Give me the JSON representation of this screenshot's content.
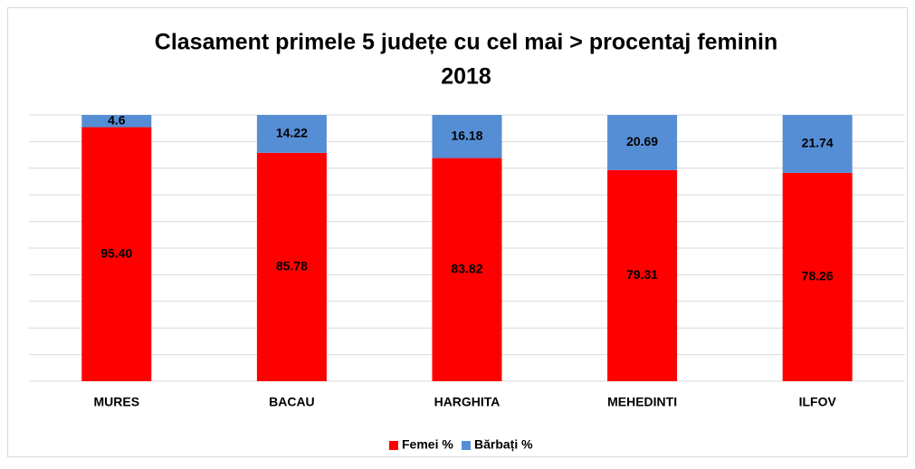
{
  "chart_data": {
    "type": "bar",
    "stacked": true,
    "title": "Clasament primele 5 județe cu cel mai > procentaj feminin",
    "subtitle": "2018",
    "categories": [
      "MURES",
      "BACAU",
      "HARGHITA",
      "MEHEDINTI",
      "ILFOV"
    ],
    "series": [
      {
        "name": "Femei %",
        "color": "#ff0000",
        "values": [
          95.4,
          85.78,
          83.82,
          79.31,
          78.26
        ],
        "value_labels": [
          "95.40",
          "85.78",
          "83.82",
          "79.31",
          "78.26"
        ]
      },
      {
        "name": "Bărbați %",
        "color": "#558ed5",
        "values": [
          4.6,
          14.22,
          16.18,
          20.69,
          21.74
        ]
      }
    ],
    "ylim": [
      0,
      100
    ],
    "yticks": [
      0,
      10,
      20,
      30,
      40,
      50,
      60,
      70,
      80,
      90,
      100
    ],
    "grid": true,
    "legend": "bottom"
  }
}
